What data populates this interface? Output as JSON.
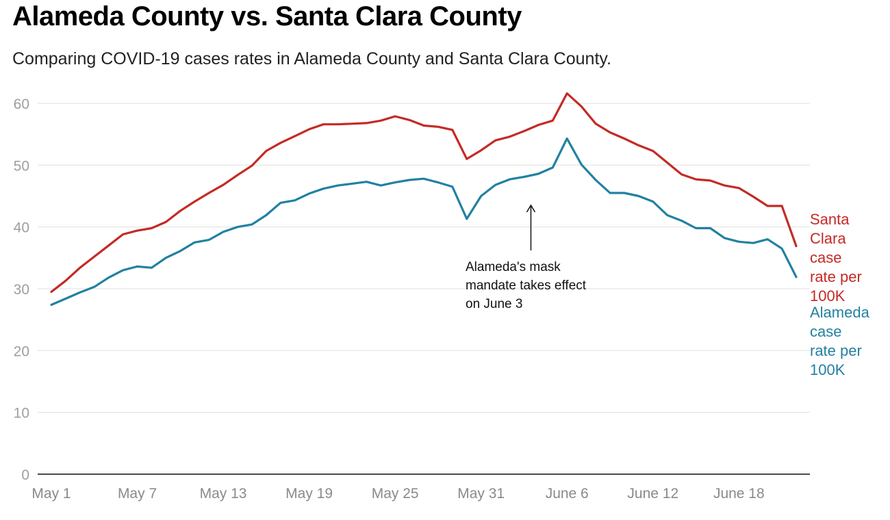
{
  "chart_data": {
    "type": "line",
    "title": "Alameda County vs. Santa Clara County",
    "subtitle": "Comparing COVID-19 cases rates in Alameda County and Santa Clara County.",
    "xlabel": "",
    "ylabel": "",
    "ylim": [
      0,
      62
    ],
    "yticks": [
      0,
      10,
      20,
      30,
      40,
      50,
      60
    ],
    "x_tick_labels": [
      {
        "day": 0,
        "label": "May 1"
      },
      {
        "day": 6,
        "label": "May 7"
      },
      {
        "day": 12,
        "label": "May 13"
      },
      {
        "day": 18,
        "label": "May 19"
      },
      {
        "day": 24,
        "label": "May 25"
      },
      {
        "day": 30,
        "label": "May 31"
      },
      {
        "day": 36,
        "label": "June 6"
      },
      {
        "day": 42,
        "label": "June 12"
      },
      {
        "day": 48,
        "label": "June 18"
      }
    ],
    "grid": true,
    "series": [
      {
        "name": "Santa Clara case rate per 100K",
        "label_lines": [
          "Santa",
          "Clara",
          "case",
          "rate per",
          "100K"
        ],
        "color": "#c42a25",
        "values": [
          29.5,
          31.3,
          33.4,
          35.2,
          37.0,
          38.8,
          39.4,
          39.8,
          40.8,
          42.6,
          44.1,
          45.5,
          46.8,
          48.4,
          49.9,
          52.3,
          53.6,
          54.7,
          55.8,
          56.6,
          56.6,
          56.7,
          56.8,
          57.2,
          57.9,
          57.3,
          56.4,
          56.2,
          55.7,
          51.0,
          52.4,
          54.0,
          54.6,
          55.5,
          56.5,
          57.2,
          61.6,
          59.5,
          56.7,
          55.3,
          54.3,
          53.2,
          52.3,
          50.4,
          48.5,
          47.7,
          47.5,
          46.7,
          46.3,
          44.9,
          43.4,
          43.4,
          36.9
        ]
      },
      {
        "name": "Alameda case rate per 100K",
        "label_lines": [
          "Alameda",
          "case",
          "rate per",
          "100K"
        ],
        "color": "#2181a1",
        "values": [
          27.4,
          28.4,
          29.4,
          30.3,
          31.8,
          33.0,
          33.6,
          33.4,
          35.0,
          36.1,
          37.5,
          37.9,
          39.2,
          40.0,
          40.4,
          41.9,
          43.9,
          44.3,
          45.4,
          46.2,
          46.7,
          47.0,
          47.3,
          46.7,
          47.2,
          47.6,
          47.8,
          47.2,
          46.5,
          41.3,
          45.0,
          46.8,
          47.7,
          48.1,
          48.6,
          49.6,
          54.3,
          50.1,
          47.6,
          45.5,
          45.5,
          45.0,
          44.1,
          41.9,
          41.0,
          39.8,
          39.8,
          38.2,
          37.6,
          37.4,
          38.0,
          36.5,
          31.9
        ]
      }
    ],
    "annotation": {
      "lines": [
        "Alameda's mask",
        "mandate takes effect",
        "on June 3"
      ],
      "day": 33,
      "value": 43
    }
  }
}
